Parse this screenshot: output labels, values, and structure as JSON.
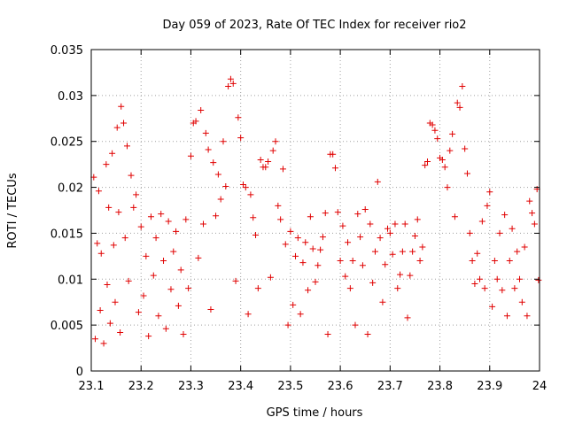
{
  "chart_data": {
    "type": "scatter",
    "title": "Day 059 of 2023, Rate Of TEC Index for receiver rio2",
    "xlabel": "GPS time / hours",
    "ylabel": "ROTI / TECUs",
    "xlim": [
      23.1,
      24.0
    ],
    "ylim": [
      0,
      0.035
    ],
    "x_ticks": [
      "23.1",
      "23.2",
      "23.3",
      "23.4",
      "23.5",
      "23.6",
      "23.7",
      "23.8",
      "23.9",
      "24"
    ],
    "y_ticks": [
      "0",
      "0.005",
      "0.01",
      "0.015",
      "0.02",
      "0.025",
      "0.03",
      "0.035"
    ],
    "grid": true,
    "marker": "+",
    "marker_color": "#e00000",
    "series": [
      {
        "points": [
          [
            23.105,
            0.0211
          ],
          [
            23.108,
            0.0035
          ],
          [
            23.112,
            0.0139
          ],
          [
            23.115,
            0.0196
          ],
          [
            23.118,
            0.0066
          ],
          [
            23.12,
            0.0128
          ],
          [
            23.125,
            0.003
          ],
          [
            23.13,
            0.0225
          ],
          [
            23.132,
            0.0094
          ],
          [
            23.135,
            0.0178
          ],
          [
            23.138,
            0.0052
          ],
          [
            23.142,
            0.0237
          ],
          [
            23.145,
            0.0137
          ],
          [
            23.148,
            0.0075
          ],
          [
            23.152,
            0.0265
          ],
          [
            23.155,
            0.0173
          ],
          [
            23.158,
            0.0042
          ],
          [
            23.16,
            0.0288
          ],
          [
            23.165,
            0.027
          ],
          [
            23.168,
            0.0145
          ],
          [
            23.172,
            0.0245
          ],
          [
            23.175,
            0.0098
          ],
          [
            23.18,
            0.0213
          ],
          [
            23.185,
            0.0178
          ],
          [
            23.19,
            0.0192
          ],
          [
            23.195,
            0.0064
          ],
          [
            23.2,
            0.0157
          ],
          [
            23.205,
            0.0082
          ],
          [
            23.21,
            0.0125
          ],
          [
            23.215,
            0.0038
          ],
          [
            23.22,
            0.0168
          ],
          [
            23.225,
            0.0104
          ],
          [
            23.23,
            0.0145
          ],
          [
            23.235,
            0.006
          ],
          [
            23.24,
            0.0171
          ],
          [
            23.245,
            0.012
          ],
          [
            23.25,
            0.0046
          ],
          [
            23.255,
            0.0163
          ],
          [
            23.26,
            0.0089
          ],
          [
            23.265,
            0.013
          ],
          [
            23.27,
            0.0152
          ],
          [
            23.275,
            0.0071
          ],
          [
            23.28,
            0.011
          ],
          [
            23.285,
            0.004
          ],
          [
            23.29,
            0.0165
          ],
          [
            23.295,
            0.009
          ],
          [
            23.3,
            0.0234
          ],
          [
            23.305,
            0.027
          ],
          [
            23.31,
            0.0272
          ],
          [
            23.315,
            0.0123
          ],
          [
            23.32,
            0.0284
          ],
          [
            23.325,
            0.016
          ],
          [
            23.33,
            0.0259
          ],
          [
            23.335,
            0.0241
          ],
          [
            23.34,
            0.0067
          ],
          [
            23.345,
            0.0227
          ],
          [
            23.35,
            0.0169
          ],
          [
            23.355,
            0.0214
          ],
          [
            23.36,
            0.0187
          ],
          [
            23.365,
            0.025
          ],
          [
            23.37,
            0.0201
          ],
          [
            23.375,
            0.031
          ],
          [
            23.38,
            0.0318
          ],
          [
            23.385,
            0.0313
          ],
          [
            23.39,
            0.0098
          ],
          [
            23.395,
            0.0276
          ],
          [
            23.4,
            0.0254
          ],
          [
            23.405,
            0.0203
          ],
          [
            23.41,
            0.02
          ],
          [
            23.415,
            0.0062
          ],
          [
            23.42,
            0.0192
          ],
          [
            23.425,
            0.0167
          ],
          [
            23.43,
            0.0148
          ],
          [
            23.435,
            0.009
          ],
          [
            23.44,
            0.023
          ],
          [
            23.445,
            0.0222
          ],
          [
            23.45,
            0.0222
          ],
          [
            23.455,
            0.0228
          ],
          [
            23.46,
            0.0102
          ],
          [
            23.465,
            0.024
          ],
          [
            23.47,
            0.025
          ],
          [
            23.475,
            0.018
          ],
          [
            23.48,
            0.0165
          ],
          [
            23.485,
            0.022
          ],
          [
            23.49,
            0.0138
          ],
          [
            23.495,
            0.005
          ],
          [
            23.5,
            0.0152
          ],
          [
            23.505,
            0.0072
          ],
          [
            23.51,
            0.0125
          ],
          [
            23.515,
            0.0145
          ],
          [
            23.52,
            0.0062
          ],
          [
            23.525,
            0.0118
          ],
          [
            23.53,
            0.014
          ],
          [
            23.535,
            0.0088
          ],
          [
            23.54,
            0.0168
          ],
          [
            23.545,
            0.0133
          ],
          [
            23.55,
            0.0097
          ],
          [
            23.555,
            0.0115
          ],
          [
            23.56,
            0.0132
          ],
          [
            23.565,
            0.0146
          ],
          [
            23.57,
            0.0172
          ],
          [
            23.575,
            0.004
          ],
          [
            23.58,
            0.0236
          ],
          [
            23.585,
            0.0236
          ],
          [
            23.59,
            0.0221
          ],
          [
            23.595,
            0.0173
          ],
          [
            23.6,
            0.012
          ],
          [
            23.605,
            0.0158
          ],
          [
            23.61,
            0.0103
          ],
          [
            23.615,
            0.014
          ],
          [
            23.62,
            0.009
          ],
          [
            23.625,
            0.012
          ],
          [
            23.63,
            0.005
          ],
          [
            23.635,
            0.0171
          ],
          [
            23.64,
            0.0146
          ],
          [
            23.645,
            0.0115
          ],
          [
            23.65,
            0.0176
          ],
          [
            23.655,
            0.004
          ],
          [
            23.66,
            0.016
          ],
          [
            23.665,
            0.0096
          ],
          [
            23.67,
            0.013
          ],
          [
            23.675,
            0.0206
          ],
          [
            23.68,
            0.0145
          ],
          [
            23.685,
            0.0075
          ],
          [
            23.69,
            0.0116
          ],
          [
            23.695,
            0.0155
          ],
          [
            23.7,
            0.015
          ],
          [
            23.705,
            0.0127
          ],
          [
            23.71,
            0.016
          ],
          [
            23.715,
            0.009
          ],
          [
            23.72,
            0.0105
          ],
          [
            23.725,
            0.013
          ],
          [
            23.73,
            0.016
          ],
          [
            23.735,
            0.0058
          ],
          [
            23.74,
            0.0104
          ],
          [
            23.745,
            0.013
          ],
          [
            23.75,
            0.0147
          ],
          [
            23.755,
            0.0165
          ],
          [
            23.76,
            0.012
          ],
          [
            23.765,
            0.0135
          ],
          [
            23.77,
            0.0224
          ],
          [
            23.775,
            0.0228
          ],
          [
            23.78,
            0.027
          ],
          [
            23.785,
            0.0268
          ],
          [
            23.79,
            0.0262
          ],
          [
            23.795,
            0.0253
          ],
          [
            23.8,
            0.0232
          ],
          [
            23.805,
            0.023
          ],
          [
            23.81,
            0.0222
          ],
          [
            23.815,
            0.02
          ],
          [
            23.82,
            0.024
          ],
          [
            23.825,
            0.0258
          ],
          [
            23.83,
            0.0168
          ],
          [
            23.835,
            0.0292
          ],
          [
            23.84,
            0.0287
          ],
          [
            23.845,
            0.031
          ],
          [
            23.85,
            0.0242
          ],
          [
            23.855,
            0.0215
          ],
          [
            23.86,
            0.015
          ],
          [
            23.865,
            0.012
          ],
          [
            23.87,
            0.0095
          ],
          [
            23.875,
            0.0128
          ],
          [
            23.88,
            0.01
          ],
          [
            23.885,
            0.0163
          ],
          [
            23.89,
            0.009
          ],
          [
            23.895,
            0.018
          ],
          [
            23.9,
            0.0195
          ],
          [
            23.905,
            0.007
          ],
          [
            23.91,
            0.012
          ],
          [
            23.915,
            0.01
          ],
          [
            23.92,
            0.015
          ],
          [
            23.925,
            0.0088
          ],
          [
            23.93,
            0.017
          ],
          [
            23.935,
            0.006
          ],
          [
            23.94,
            0.012
          ],
          [
            23.945,
            0.0155
          ],
          [
            23.95,
            0.009
          ],
          [
            23.955,
            0.013
          ],
          [
            23.96,
            0.01
          ],
          [
            23.965,
            0.0075
          ],
          [
            23.97,
            0.0135
          ],
          [
            23.975,
            0.006
          ],
          [
            23.98,
            0.0185
          ],
          [
            23.985,
            0.0172
          ],
          [
            23.99,
            0.016
          ],
          [
            23.995,
            0.0198
          ],
          [
            23.998,
            0.0099
          ]
        ]
      }
    ]
  }
}
